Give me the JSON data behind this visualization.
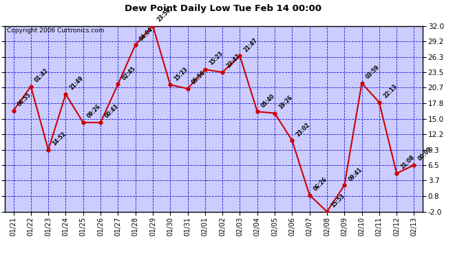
{
  "title": "Dew Point Daily Low Tue Feb 14 00:00",
  "copyright": "Copyright 2006 Curtronics.com",
  "background_color": "#ffffff",
  "plot_bg_color": "#ccccff",
  "grid_color": "#0000cc",
  "line_color": "#cc0000",
  "marker_color": "#cc0000",
  "text_color": "#000000",
  "ylim": [
    -2.0,
    32.0
  ],
  "yticks": [
    -2.0,
    0.8,
    3.7,
    6.5,
    9.3,
    12.2,
    15.0,
    17.8,
    20.7,
    23.5,
    26.3,
    29.2,
    32.0
  ],
  "x_labels": [
    "01/21",
    "01/22",
    "01/23",
    "01/24",
    "01/25",
    "01/26",
    "01/27",
    "01/28",
    "01/29",
    "01/30",
    "01/31",
    "02/01",
    "02/02",
    "02/03",
    "02/04",
    "02/05",
    "02/06",
    "02/07",
    "02/08",
    "02/09",
    "02/10",
    "02/11",
    "02/12",
    "02/13"
  ],
  "y_values": [
    16.5,
    20.9,
    9.3,
    19.5,
    14.3,
    14.3,
    21.3,
    28.5,
    32.0,
    21.2,
    20.5,
    24.0,
    23.5,
    26.5,
    16.3,
    16.0,
    11.0,
    1.0,
    -2.0,
    2.8,
    21.5,
    18.0,
    5.0,
    6.5
  ],
  "time_labels": [
    "06:55",
    "01:42",
    "14:52",
    "21:49",
    "09:26",
    "00:43",
    "02:45",
    "04:04",
    "23:56",
    "15:23",
    "05:56",
    "15:23",
    "23:47",
    "21:47",
    "05:40",
    "19:26",
    "23:02",
    "06:26",
    "15:53",
    "09:41",
    "03:59",
    "22:13",
    "21:08",
    "00:00"
  ]
}
